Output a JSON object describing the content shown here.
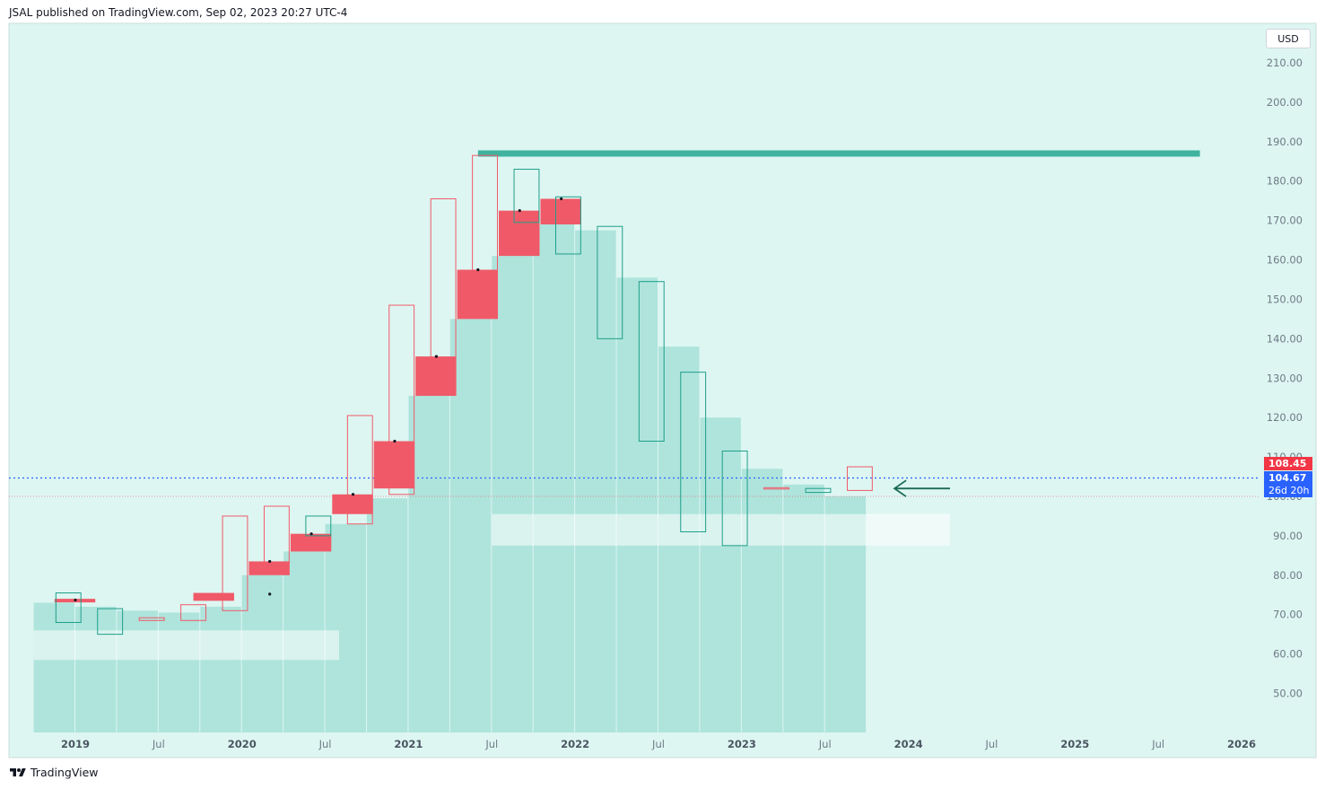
{
  "header": {
    "text": "JSAL published on TradingView.com, Sep 02, 2023 20:27 UTC-4"
  },
  "footer": {
    "brand": "TradingView",
    "logo_icon": "tradingview-logo-icon"
  },
  "price_scale": {
    "currency": "USD",
    "labels": [
      "210.00",
      "200.00",
      "190.00",
      "180.00",
      "170.00",
      "160.00",
      "150.00",
      "140.00",
      "130.00",
      "120.00",
      "110.00",
      "100.00",
      "90.00",
      "80.00",
      "70.00",
      "60.00",
      "50.00"
    ],
    "high_tag": "108.45",
    "last_price": "104.67",
    "countdown": "26d 20h"
  },
  "colors": {
    "background": "#ddf6f2",
    "bar_fill": "#aee4dc",
    "bearish": "#f05a68",
    "bullish": "#1f9e89",
    "resistance_line": "#3fb39f",
    "last_price_line": "#2962ff",
    "arrow": "#1b6b55"
  },
  "chart_data": {
    "type": "candlestick",
    "title": "",
    "ylim": [
      40,
      218
    ],
    "y_ticks": [
      50,
      60,
      70,
      80,
      90,
      100,
      110,
      120,
      130,
      140,
      150,
      160,
      170,
      180,
      190,
      200,
      210
    ],
    "x_labels": [
      {
        "label": "2019",
        "date": "2019-01",
        "bold": true
      },
      {
        "label": "Jul",
        "date": "2019-07"
      },
      {
        "label": "2020",
        "date": "2020-01",
        "bold": true
      },
      {
        "label": "Jul",
        "date": "2020-07"
      },
      {
        "label": "2021",
        "date": "2021-01",
        "bold": true
      },
      {
        "label": "Jul",
        "date": "2021-07"
      },
      {
        "label": "2022",
        "date": "2022-01",
        "bold": true
      },
      {
        "label": "Jul",
        "date": "2022-07"
      },
      {
        "label": "2023",
        "date": "2023-01",
        "bold": true
      },
      {
        "label": "Jul",
        "date": "2023-07"
      },
      {
        "label": "2024",
        "date": "2024-01",
        "bold": true
      },
      {
        "label": "Jul",
        "date": "2024-07"
      },
      {
        "label": "2025",
        "date": "2025-01",
        "bold": true
      },
      {
        "label": "Jul",
        "date": "2025-07"
      },
      {
        "label": "2026",
        "date": "2026-01",
        "bold": true
      }
    ],
    "period_bars": {
      "periods": [
        "2018-Q4",
        "2019-Q1",
        "2019-Q2",
        "2019-Q3",
        "2019-Q4",
        "2020-Q1",
        "2020-Q2",
        "2020-Q3",
        "2020-Q4",
        "2021-Q1",
        "2021-Q2",
        "2021-Q3",
        "2021-Q4",
        "2022-Q1",
        "2022-Q2",
        "2022-Q3",
        "2022-Q4",
        "2023-Q1",
        "2023-Q2",
        "2023-Q3"
      ],
      "values": [
        73,
        72,
        71,
        70.5,
        72,
        80,
        86,
        93,
        99.5,
        125.5,
        145,
        161,
        169,
        167.5,
        155.5,
        138,
        120,
        107,
        103,
        100
      ]
    },
    "bar_boxes": [
      {
        "date": "2018-12",
        "low": 73.5,
        "high": 74
      },
      {
        "date": "2019-10",
        "low": 73.5,
        "high": 75.5
      },
      {
        "date": "2020-02",
        "low": 80,
        "high": 83.5
      },
      {
        "date": "2020-05",
        "low": 86,
        "high": 90.5
      },
      {
        "date": "2020-08",
        "low": 95.5,
        "high": 100.5
      },
      {
        "date": "2020-11",
        "low": 102,
        "high": 114
      },
      {
        "date": "2021-02",
        "low": 125.5,
        "high": 135.5
      },
      {
        "date": "2021-05",
        "low": 145,
        "high": 157.5
      },
      {
        "date": "2021-08",
        "low": 161,
        "high": 172.5
      },
      {
        "date": "2021-11",
        "low": 169,
        "high": 175.5
      }
    ],
    "body_markers": [
      {
        "date": "2019-01",
        "value": 73.7
      },
      {
        "date": "2020-03",
        "value": 75.2
      },
      {
        "date": "2020-03",
        "value": 83.5
      },
      {
        "date": "2020-06",
        "value": 90.5
      },
      {
        "date": "2020-09",
        "value": 100.5
      },
      {
        "date": "2020-12",
        "value": 114
      },
      {
        "date": "2021-03",
        "value": 135.5
      },
      {
        "date": "2021-06",
        "value": 157.5
      },
      {
        "date": "2021-09",
        "value": 172.5
      },
      {
        "date": "2021-12",
        "value": 175.5
      }
    ],
    "outline_boxes": [
      {
        "from": "2018-11",
        "to": "2019-02",
        "low": 68,
        "high": 75.5,
        "trend": "up"
      },
      {
        "from": "2019-02",
        "to": "2019-05",
        "low": 65,
        "high": 71.5,
        "trend": "up"
      },
      {
        "from": "2019-05",
        "to": "2019-08",
        "low": 68.5,
        "high": 69.2,
        "trend": "down"
      },
      {
        "from": "2019-08",
        "to": "2019-11",
        "low": 68.5,
        "high": 72.5,
        "trend": "down"
      },
      {
        "from": "2019-11",
        "to": "2020-02",
        "low": 71,
        "high": 95,
        "trend": "down"
      },
      {
        "from": "2020-02",
        "to": "2020-05",
        "low": 83,
        "high": 97.5,
        "trend": "down"
      },
      {
        "from": "2020-05",
        "to": "2020-08",
        "low": 90,
        "high": 95,
        "trend": "up"
      },
      {
        "from": "2020-08",
        "to": "2020-11",
        "low": 93,
        "high": 120.5,
        "trend": "down"
      },
      {
        "from": "2020-11",
        "to": "2021-02",
        "low": 100.5,
        "high": 148.5,
        "trend": "down"
      },
      {
        "from": "2021-02",
        "to": "2021-05",
        "low": 127.5,
        "high": 175.5,
        "trend": "down"
      },
      {
        "from": "2021-05",
        "to": "2021-08",
        "low": 152,
        "high": 186.5,
        "trend": "down"
      },
      {
        "from": "2021-08",
        "to": "2021-11",
        "low": 169.5,
        "high": 183,
        "trend": "up"
      },
      {
        "from": "2021-11",
        "to": "2022-02",
        "low": 161.5,
        "high": 176,
        "trend": "up"
      },
      {
        "from": "2022-02",
        "to": "2022-05",
        "low": 140,
        "high": 168.5,
        "trend": "up"
      },
      {
        "from": "2022-05",
        "to": "2022-08",
        "low": 114,
        "high": 154.5,
        "trend": "up"
      },
      {
        "from": "2022-08",
        "to": "2022-11",
        "low": 91,
        "high": 131.5,
        "trend": "up"
      },
      {
        "from": "2022-11",
        "to": "2023-02",
        "low": 87.5,
        "high": 111.5,
        "trend": "up"
      },
      {
        "from": "2023-02",
        "to": "2023-05",
        "low": 102,
        "high": 102.2,
        "trend": "down"
      },
      {
        "from": "2023-05",
        "to": "2023-08",
        "low": 101,
        "high": 102,
        "trend": "up"
      },
      {
        "from": "2023-08",
        "to": "2023-11",
        "low": 101.5,
        "high": 107.5,
        "trend": "down"
      }
    ],
    "resistance_line": {
      "from": "2021-06",
      "to": "2025-10",
      "value": 187
    },
    "zones": [
      {
        "from": "2018-10",
        "to": "2020-08",
        "low": 58.5,
        "high": 66
      },
      {
        "from": "2021-07",
        "to": "2024-04",
        "low": 87.5,
        "high": 95.5
      }
    ],
    "last_price_line": 104.67,
    "prev_close_line": 100,
    "arrow": {
      "from": "2024-04",
      "to": "2023-12",
      "value": 102
    }
  }
}
